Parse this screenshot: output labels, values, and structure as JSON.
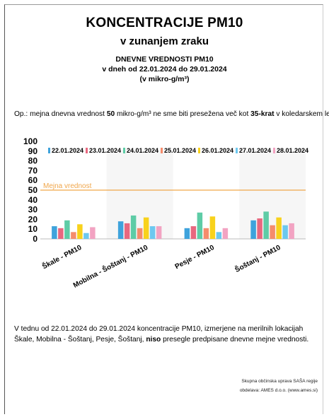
{
  "header": {
    "title": "KONCENTRACIJE PM10",
    "subtitle": "v zunanjem zraku",
    "line1": "DNEVNE VREDNOSTI PM10",
    "line2": "v dneh od 22.01.2024 do 29.01.2024",
    "line3": "(v mikro-g/m³)"
  },
  "note": {
    "part1": "Op.: mejna dnevna vrednost ",
    "limit_value": "50",
    "part2": " mikro-g/m³ ne sme biti presežena več kot ",
    "times": "35-krat",
    "part3": " v koledarskem letu"
  },
  "bottom": {
    "part1": "V tednu od 22.01.2024 do 29.01.2024 koncentracije PM10, izmerjene na merilnih lokacijah Škale, Mobilna - Šoštanj, Pesje, Šoštanj, ",
    "bold": "niso",
    "part2": " presegle predpisane dnevne mejne vrednosti."
  },
  "credits": {
    "line1": "Skupna občinska uprava SAŠA regije",
    "line2": "obdelava: AMES d.o.o. (www.ames.si)"
  },
  "chart_data": {
    "type": "bar",
    "categories": [
      "Škale - PM10",
      "Mobilna - Šoštanj - PM10",
      "Pesje - PM10",
      "Šoštanj - PM10"
    ],
    "ylim": [
      0,
      100
    ],
    "yticks": [
      0,
      10,
      20,
      30,
      40,
      50,
      60,
      70,
      80,
      90,
      100
    ],
    "limit_line": {
      "value": 50,
      "label": "Mejna vrednost",
      "color": "#f0a64a"
    },
    "legend_position": "top",
    "series": [
      {
        "name": "22.01.2024",
        "color": "#3fa3dc",
        "values": [
          13,
          18,
          11,
          19
        ]
      },
      {
        "name": "23.01.2024",
        "color": "#e8687f",
        "values": [
          11,
          16,
          13,
          21
        ]
      },
      {
        "name": "24.01.2024",
        "color": "#5ecca6",
        "values": [
          19,
          24,
          27,
          28
        ]
      },
      {
        "name": "25.01.2024",
        "color": "#f58c6c",
        "values": [
          7,
          11,
          11,
          14
        ]
      },
      {
        "name": "26.01.2024",
        "color": "#f8d21c",
        "values": [
          15,
          22,
          23,
          22
        ]
      },
      {
        "name": "27.01.2024",
        "color": "#6dc8ef",
        "values": [
          6,
          13,
          7,
          14
        ]
      },
      {
        "name": "28.01.2024",
        "color": "#f2a3c2",
        "values": [
          12,
          13,
          11,
          16
        ]
      }
    ]
  }
}
